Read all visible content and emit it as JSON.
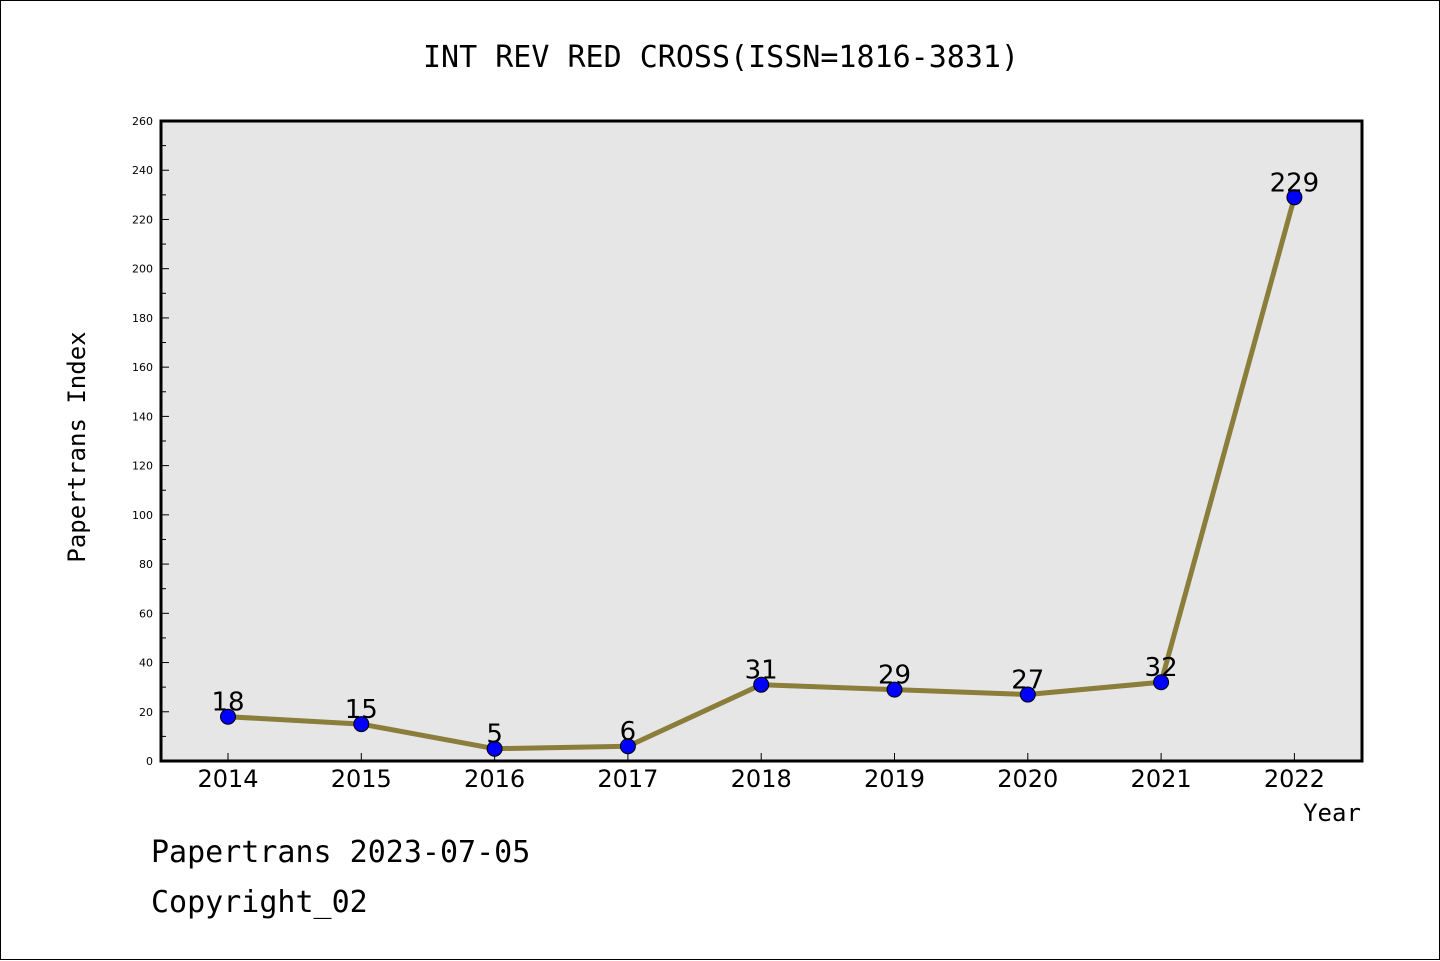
{
  "chart_data": {
    "type": "line",
    "title": "INT REV RED CROSS(ISSN=1816-3831)",
    "xlabel": "Year",
    "ylabel": "Papertrans Index",
    "categories": [
      "2014",
      "2015",
      "2016",
      "2017",
      "2018",
      "2019",
      "2020",
      "2021",
      "2022"
    ],
    "series": [
      {
        "values": [
          18,
          15,
          5,
          6,
          31,
          29,
          27,
          32,
          229
        ]
      }
    ],
    "ylim": [
      0,
      260
    ],
    "yticks": [
      "0",
      "20",
      "40",
      "60",
      "80",
      "100",
      "120",
      "140",
      "160",
      "180",
      "200",
      "220",
      "240",
      "260"
    ],
    "line_color": "#8b7d3a",
    "marker_color": "#0000ff",
    "plot_background": "#e6e6e6",
    "grid": false,
    "legend": false
  },
  "footer": {
    "line1": "Papertrans 2023-07-05",
    "line2": "Copyright_02"
  }
}
